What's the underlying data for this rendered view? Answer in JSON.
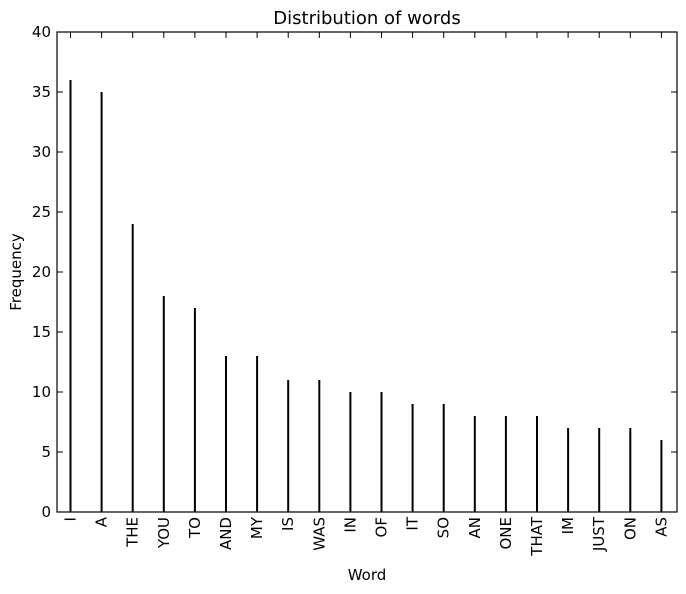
{
  "chart_data": {
    "type": "bar",
    "title": "Distribution of words",
    "xlabel": "Word",
    "ylabel": "Frequency",
    "ylim": [
      0,
      40
    ],
    "yticks": [
      0,
      5,
      10,
      15,
      20,
      25,
      30,
      35,
      40
    ],
    "grid": false,
    "bar_color": "#000000",
    "categories": [
      "I",
      "A",
      "THE",
      "YOU",
      "TO",
      "AND",
      "MY",
      "IS",
      "WAS",
      "IN",
      "OF",
      "IT",
      "SO",
      "AN",
      "ONE",
      "THAT",
      "IM",
      "JUST",
      "ON",
      "AS"
    ],
    "values": [
      36,
      35,
      24,
      18,
      17,
      13,
      13,
      11,
      11,
      10,
      10,
      9,
      9,
      8,
      8,
      8,
      7,
      7,
      7,
      6
    ]
  }
}
